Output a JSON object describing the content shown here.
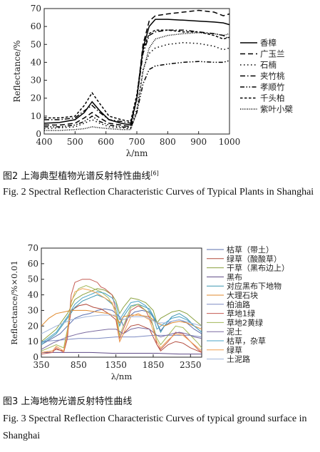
{
  "figures": [
    {
      "caption_cn": "图2   上海典型植物光谱反射特性曲线",
      "caption_ref": "[6]",
      "caption_en": "Fig. 2   Spectral Reflection Characteristic Curves of Typical Plants in Shanghai"
    },
    {
      "caption_cn": "图3   上海地物光谱反射特性曲线",
      "caption_en": "Fig. 3   Spectral Reflection Characteristic Curves of typical ground surface in Shanghai"
    }
  ],
  "chart_data": [
    {
      "type": "line",
      "xlabel": "λ/nm",
      "ylabel": "Reflectance/%",
      "xlim": [
        400,
        1000
      ],
      "ylim": [
        0,
        70
      ],
      "xticks": [
        400,
        500,
        600,
        700,
        800,
        900,
        1000
      ],
      "yticks": [
        0,
        10,
        20,
        30,
        40,
        50,
        60,
        70
      ],
      "grid": false,
      "legend_position": "right",
      "series": [
        {
          "name": "香樟",
          "dash": "solid",
          "color": "#000000",
          "x": [
            400,
            450,
            500,
            530,
            555,
            580,
            610,
            650,
            680,
            700,
            720,
            740,
            760,
            800,
            850,
            900,
            950,
            980,
            1000
          ],
          "y": [
            6,
            6.5,
            8,
            12,
            18,
            13,
            8,
            6,
            5,
            20,
            48,
            60,
            64,
            64,
            63.5,
            63,
            62.5,
            62,
            61
          ]
        },
        {
          "name": "广玉兰",
          "dash": "dashed",
          "color": "#000000",
          "x": [
            400,
            450,
            500,
            530,
            555,
            580,
            610,
            650,
            680,
            700,
            720,
            740,
            760,
            800,
            850,
            900,
            950,
            980,
            1000
          ],
          "y": [
            5,
            5,
            6,
            9,
            12,
            9,
            6,
            5,
            4,
            20,
            50,
            63,
            66,
            67,
            68,
            69,
            68,
            66,
            67
          ]
        },
        {
          "name": "石楠",
          "dash": "dotted-wide",
          "color": "#000000",
          "x": [
            400,
            450,
            500,
            530,
            555,
            580,
            610,
            650,
            680,
            700,
            720,
            740,
            760,
            800,
            850,
            900,
            950,
            980,
            1000
          ],
          "y": [
            3,
            3.5,
            4,
            6,
            8,
            6,
            4,
            3.5,
            3,
            14,
            36,
            45,
            48,
            50,
            51,
            50.5,
            49,
            47,
            48
          ]
        },
        {
          "name": "夹竹桃",
          "dash": "dash-dot",
          "color": "#000000",
          "x": [
            400,
            450,
            500,
            530,
            555,
            580,
            610,
            650,
            680,
            700,
            720,
            740,
            760,
            800,
            850,
            900,
            950,
            980,
            1000
          ],
          "y": [
            8,
            8,
            9,
            13,
            16,
            12,
            8,
            7,
            6,
            20,
            45,
            55,
            57,
            58,
            58,
            57,
            56,
            55,
            53
          ]
        },
        {
          "name": "孝顺竹",
          "dash": "dash-dot-dot",
          "color": "#000000",
          "x": [
            400,
            450,
            500,
            530,
            555,
            580,
            610,
            650,
            680,
            700,
            720,
            740,
            760,
            800,
            850,
            900,
            950,
            980,
            1000
          ],
          "y": [
            4,
            4,
            5,
            7,
            10,
            7,
            5,
            4,
            3.5,
            12,
            28,
            36,
            38,
            39,
            40,
            40.5,
            40,
            40,
            41
          ]
        },
        {
          "name": "千头柏",
          "dash": "dense-dash",
          "color": "#000000",
          "x": [
            400,
            450,
            500,
            530,
            555,
            580,
            610,
            650,
            680,
            700,
            720,
            740,
            760,
            800,
            850,
            900,
            950,
            980,
            1000
          ],
          "y": [
            9,
            9,
            10,
            16,
            23,
            17,
            10,
            8,
            7,
            22,
            47,
            56,
            58,
            58,
            57,
            57,
            55,
            53,
            54
          ]
        },
        {
          "name": "紫叶小檗",
          "dash": "fine-dot",
          "color": "#000000",
          "x": [
            400,
            450,
            500,
            530,
            555,
            580,
            610,
            650,
            680,
            700,
            720,
            740,
            760,
            800,
            850,
            900,
            950,
            980,
            1000
          ],
          "y": [
            2,
            2,
            2.5,
            3,
            4,
            3.5,
            3,
            2.5,
            2.5,
            12,
            35,
            48,
            53,
            55,
            56,
            56.5,
            56,
            55,
            56
          ]
        }
      ]
    },
    {
      "type": "line",
      "xlabel": "λ/nm",
      "ylabel": "Reflectance/%×0.01",
      "xlim": [
        350,
        2500
      ],
      "ylim": [
        0,
        70
      ],
      "xticks": [
        350,
        850,
        1350,
        1850,
        2350
      ],
      "yticks": [
        0,
        10,
        20,
        30,
        40,
        50,
        60,
        70
      ],
      "grid": false,
      "legend_position": "right",
      "series": [
        {
          "name": "枯草（带土）",
          "color": "#5b6fae",
          "x": [
            350,
            600,
            700,
            800,
            900,
            1000,
            1100,
            1200,
            1300,
            1400,
            1450,
            1500,
            1600,
            1700,
            1800,
            1900,
            1950,
            2000,
            2100,
            2200,
            2300,
            2400,
            2500
          ],
          "y": [
            8,
            15,
            20,
            25,
            27,
            28,
            30,
            31,
            30,
            26,
            20,
            25,
            29,
            30,
            29,
            22,
            17,
            20,
            23,
            24,
            22,
            18,
            15
          ]
        },
        {
          "name": "绿草（酸酸草）",
          "color": "#b24a3c",
          "x": [
            350,
            500,
            550,
            650,
            700,
            750,
            850,
            950,
            1050,
            1150,
            1250,
            1350,
            1400,
            1450,
            1550,
            1650,
            1800,
            1900,
            1950,
            2050,
            2150,
            2250,
            2350,
            2450,
            2500
          ],
          "y": [
            3,
            4,
            5,
            4,
            15,
            30,
            33,
            34,
            32,
            31,
            28,
            24,
            10,
            15,
            20,
            21,
            18,
            8,
            4,
            8,
            10,
            9,
            6,
            4,
            3
          ]
        },
        {
          "name": "干草（黑布边上）",
          "color": "#8aa13f",
          "x": [
            350,
            550,
            700,
            800,
            900,
            1000,
            1100,
            1200,
            1300,
            1350,
            1400,
            1450,
            1550,
            1650,
            1750,
            1850,
            1900,
            1950,
            2100,
            2200,
            2300,
            2400,
            2500
          ],
          "y": [
            10,
            18,
            28,
            37,
            40,
            42,
            44,
            43,
            40,
            36,
            28,
            32,
            38,
            37,
            35,
            30,
            22,
            25,
            29,
            30,
            28,
            24,
            20
          ]
        },
        {
          "name": "黑布",
          "color": "#5e4a86",
          "x": [
            350,
            700,
            1000,
            1300,
            1600,
            1900,
            2200,
            2500
          ],
          "y": [
            3,
            3,
            3,
            2.5,
            2.5,
            2.5,
            2,
            2
          ]
        },
        {
          "name": "对应黑布下地物",
          "color": "#3f97b0",
          "x": [
            350,
            550,
            700,
            800,
            900,
            1000,
            1100,
            1200,
            1300,
            1350,
            1400,
            1450,
            1550,
            1650,
            1800,
            1900,
            1950,
            2000,
            2100,
            2200,
            2300,
            2400,
            2500
          ],
          "y": [
            8,
            15,
            25,
            32,
            36,
            38,
            40,
            38,
            34,
            30,
            20,
            26,
            33,
            34,
            31,
            22,
            16,
            20,
            26,
            28,
            25,
            20,
            16
          ]
        },
        {
          "name": "大理石块",
          "color": "#e08a2e",
          "x": [
            350,
            450,
            550,
            650,
            750,
            850,
            950,
            1100,
            1250,
            1350,
            1400,
            1450,
            1550,
            1650,
            1800,
            1900,
            2000,
            2100,
            2200,
            2300,
            2400,
            2500
          ],
          "y": [
            20,
            25,
            28,
            29,
            30,
            30,
            30,
            29,
            28,
            26,
            22,
            26,
            27,
            27,
            26,
            22,
            20,
            22,
            23,
            22,
            20,
            18
          ]
        },
        {
          "name": "柏油路",
          "color": "#7d8bc2",
          "x": [
            350,
            600,
            850,
            1100,
            1350,
            1600,
            1850,
            2100,
            2350,
            2500
          ],
          "y": [
            10,
            11,
            12,
            12,
            13,
            13,
            14,
            14,
            14,
            13
          ]
        },
        {
          "name": "草地1绿",
          "color": "#c45a52",
          "x": [
            350,
            500,
            550,
            650,
            700,
            750,
            800,
            900,
            1000,
            1100,
            1150,
            1200,
            1300,
            1350,
            1400,
            1450,
            1550,
            1650,
            1750,
            1850,
            1900,
            1950,
            2050,
            2150,
            2250,
            2350,
            2450,
            2500
          ],
          "y": [
            2,
            3,
            6,
            3,
            12,
            40,
            48,
            50,
            50,
            48,
            45,
            44,
            40,
            30,
            12,
            18,
            30,
            33,
            30,
            20,
            8,
            5,
            10,
            16,
            15,
            10,
            5,
            3
          ]
        },
        {
          "name": "草地2黄绿",
          "color": "#a3b85a",
          "x": [
            350,
            550,
            650,
            700,
            750,
            850,
            950,
            1050,
            1150,
            1250,
            1350,
            1400,
            1450,
            1550,
            1650,
            1800,
            1900,
            1950,
            2050,
            2150,
            2250,
            2350,
            2450,
            2500
          ],
          "y": [
            4,
            8,
            6,
            18,
            36,
            44,
            46,
            44,
            42,
            38,
            30,
            14,
            20,
            32,
            34,
            28,
            12,
            8,
            14,
            20,
            19,
            14,
            9,
            6
          ]
        },
        {
          "name": "泥土",
          "color": "#7a6aa0",
          "x": [
            350,
            500,
            700,
            850,
            950,
            1100,
            1250,
            1350,
            1450,
            1550,
            1650,
            1800,
            1900,
            1950,
            2100,
            2200,
            2300,
            2400,
            2500
          ],
          "y": [
            5,
            9,
            13,
            15,
            16,
            17,
            18,
            18,
            15,
            18,
            19,
            18,
            14,
            13,
            15,
            16,
            15,
            13,
            12
          ]
        },
        {
          "name": "枯草，杂草",
          "color": "#4aa3c7",
          "x": [
            350,
            550,
            700,
            800,
            900,
            1000,
            1100,
            1200,
            1300,
            1350,
            1400,
            1450,
            1550,
            1650,
            1750,
            1850,
            1900,
            1950,
            2100,
            2200,
            2300,
            2400,
            2500
          ],
          "y": [
            9,
            16,
            26,
            34,
            38,
            40,
            42,
            41,
            38,
            34,
            24,
            28,
            35,
            36,
            33,
            26,
            18,
            20,
            25,
            26,
            24,
            20,
            16
          ]
        },
        {
          "name": "绿草",
          "color": "#f0a050",
          "x": [
            350,
            500,
            550,
            650,
            700,
            750,
            800,
            900,
            1000,
            1100,
            1200,
            1300,
            1350,
            1400,
            1450,
            1550,
            1650,
            1800,
            1900,
            1950,
            2050,
            2150,
            2250,
            2350,
            2450,
            2500
          ],
          "y": [
            3,
            4,
            7,
            4,
            16,
            35,
            42,
            44,
            43,
            41,
            38,
            35,
            27,
            10,
            15,
            26,
            28,
            24,
            10,
            6,
            11,
            15,
            14,
            10,
            6,
            4
          ]
        },
        {
          "name": "土泥路",
          "color": "#9fb4da",
          "x": [
            350,
            550,
            750,
            950,
            1150,
            1350,
            1450,
            1550,
            1750,
            1900,
            2000,
            2200,
            2350,
            2500
          ],
          "y": [
            15,
            20,
            24,
            26,
            27,
            27,
            24,
            26,
            26,
            22,
            22,
            24,
            22,
            20
          ]
        }
      ]
    }
  ]
}
